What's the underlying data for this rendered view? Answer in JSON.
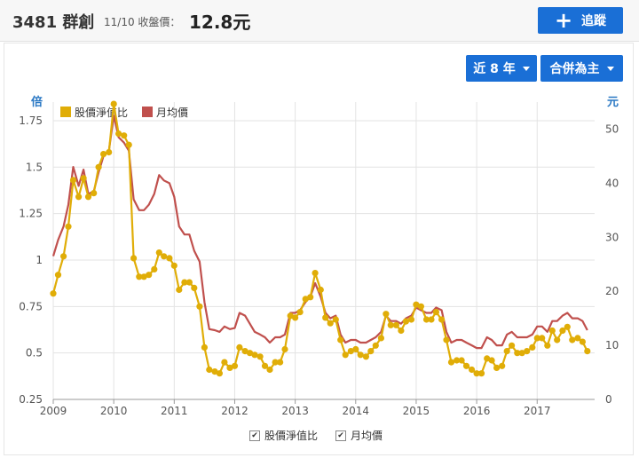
{
  "header": {
    "stock_title": "3481 群創",
    "price_date": "11/10 收盤價：",
    "price_value": "12.8元",
    "follow_label": "追蹤"
  },
  "controls": {
    "range_label": "近 8 年",
    "scope_label": "合併為主"
  },
  "chart_data": {
    "type": "line",
    "left_unit": "倍",
    "right_unit": "元",
    "x_ticks": [
      "2009",
      "2010",
      "2011",
      "2012",
      "2013",
      "2014",
      "2015",
      "2016",
      "2017"
    ],
    "left_ticks": [
      "0.25",
      "0.5",
      "0.75",
      "1",
      "1.25",
      "1.5",
      "1.75"
    ],
    "right_ticks": [
      "0",
      "10",
      "20",
      "30",
      "40",
      "50"
    ],
    "left_range": [
      0.25,
      1.85
    ],
    "right_range": [
      0,
      55
    ],
    "x_range": [
      2009.0,
      2017.95
    ],
    "legend": [
      "股價淨值比",
      "月均價"
    ],
    "colors": {
      "pb": "#e0ad07",
      "price": "#c0504d"
    },
    "series": [
      {
        "name": "股價淨值比",
        "axis": "left",
        "x": [
          2009.0,
          2009.08,
          2009.17,
          2009.25,
          2009.33,
          2009.42,
          2009.5,
          2009.58,
          2009.67,
          2009.75,
          2009.83,
          2009.92,
          2010.0,
          2010.08,
          2010.17,
          2010.25,
          2010.33,
          2010.42,
          2010.5,
          2010.58,
          2010.67,
          2010.75,
          2010.83,
          2010.92,
          2011.0,
          2011.08,
          2011.17,
          2011.25,
          2011.33,
          2011.42,
          2011.5,
          2011.58,
          2011.67,
          2011.75,
          2011.83,
          2011.92,
          2012.0,
          2012.08,
          2012.17,
          2012.25,
          2012.33,
          2012.42,
          2012.5,
          2012.58,
          2012.67,
          2012.75,
          2012.83,
          2012.92,
          2013.0,
          2013.08,
          2013.17,
          2013.25,
          2013.33,
          2013.42,
          2013.5,
          2013.58,
          2013.67,
          2013.75,
          2013.83,
          2013.92,
          2014.0,
          2014.08,
          2014.17,
          2014.25,
          2014.33,
          2014.42,
          2014.5,
          2014.58,
          2014.67,
          2014.75,
          2014.83,
          2014.92,
          2015.0,
          2015.08,
          2015.17,
          2015.25,
          2015.33,
          2015.42,
          2015.5,
          2015.58,
          2015.67,
          2015.75,
          2015.83,
          2015.92,
          2016.0,
          2016.08,
          2016.17,
          2016.25,
          2016.33,
          2016.42,
          2016.5,
          2016.58,
          2016.67,
          2016.75,
          2016.83,
          2016.92,
          2017.0,
          2017.08,
          2017.17,
          2017.25,
          2017.33,
          2017.42,
          2017.5,
          2017.58,
          2017.67,
          2017.75,
          2017.83
        ],
        "values": [
          0.82,
          0.92,
          1.02,
          1.18,
          1.43,
          1.34,
          1.44,
          1.34,
          1.36,
          1.5,
          1.57,
          1.58,
          1.84,
          1.68,
          1.67,
          1.62,
          1.01,
          0.91,
          0.91,
          0.92,
          0.95,
          1.04,
          1.02,
          1.01,
          0.97,
          0.84,
          0.88,
          0.88,
          0.85,
          0.75,
          0.53,
          0.41,
          0.4,
          0.39,
          0.45,
          0.42,
          0.43,
          0.53,
          0.51,
          0.5,
          0.49,
          0.48,
          0.43,
          0.41,
          0.45,
          0.45,
          0.52,
          0.7,
          0.69,
          0.72,
          0.79,
          0.8,
          0.93,
          0.84,
          0.69,
          0.66,
          0.68,
          0.57,
          0.49,
          0.51,
          0.52,
          0.49,
          0.48,
          0.51,
          0.54,
          0.58,
          0.71,
          0.65,
          0.65,
          0.62,
          0.67,
          0.68,
          0.76,
          0.75,
          0.68,
          0.68,
          0.72,
          0.68,
          0.57,
          0.45,
          0.46,
          0.46,
          0.43,
          0.41,
          0.39,
          0.39,
          0.47,
          0.46,
          0.42,
          0.43,
          0.51,
          0.54,
          0.5,
          0.5,
          0.51,
          0.53,
          0.58,
          0.58,
          0.54,
          0.62,
          0.57,
          0.62,
          0.64,
          0.57,
          0.58,
          0.56,
          0.51
        ]
      },
      {
        "name": "月均價",
        "axis": "right",
        "x": [
          2009.0,
          2009.08,
          2009.17,
          2009.25,
          2009.33,
          2009.42,
          2009.5,
          2009.58,
          2009.67,
          2009.75,
          2009.83,
          2009.92,
          2010.0,
          2010.08,
          2010.17,
          2010.25,
          2010.33,
          2010.42,
          2010.5,
          2010.58,
          2010.67,
          2010.75,
          2010.83,
          2010.92,
          2011.0,
          2011.08,
          2011.17,
          2011.25,
          2011.33,
          2011.42,
          2011.5,
          2011.58,
          2011.67,
          2011.75,
          2011.83,
          2011.92,
          2012.0,
          2012.08,
          2012.17,
          2012.25,
          2012.33,
          2012.42,
          2012.5,
          2012.58,
          2012.67,
          2012.75,
          2012.83,
          2012.92,
          2013.0,
          2013.08,
          2013.17,
          2013.25,
          2013.33,
          2013.42,
          2013.5,
          2013.58,
          2013.67,
          2013.75,
          2013.83,
          2013.92,
          2014.0,
          2014.08,
          2014.17,
          2014.25,
          2014.33,
          2014.42,
          2014.5,
          2014.58,
          2014.67,
          2014.75,
          2014.83,
          2014.92,
          2015.0,
          2015.08,
          2015.17,
          2015.25,
          2015.33,
          2015.42,
          2015.5,
          2015.58,
          2015.67,
          2015.75,
          2015.83,
          2015.92,
          2016.0,
          2016.08,
          2016.17,
          2016.25,
          2016.33,
          2016.42,
          2016.5,
          2016.58,
          2016.67,
          2016.75,
          2016.83,
          2016.92,
          2017.0,
          2017.08,
          2017.17,
          2017.25,
          2017.33,
          2017.42,
          2017.5,
          2017.58,
          2017.67,
          2017.75,
          2017.83
        ],
        "values": [
          26.5,
          29.5,
          32.0,
          36.0,
          43.0,
          39.5,
          42.5,
          38.0,
          38.5,
          42.0,
          45.0,
          46.0,
          52.5,
          48.5,
          47.5,
          46.0,
          37.0,
          35.0,
          35.0,
          36.0,
          38.0,
          41.5,
          40.5,
          40.0,
          37.5,
          32.0,
          30.5,
          30.5,
          27.5,
          25.5,
          18.0,
          13.0,
          12.8,
          12.5,
          13.5,
          13.0,
          13.2,
          16.0,
          15.5,
          14.0,
          12.5,
          12.0,
          11.5,
          10.5,
          11.5,
          11.5,
          12.0,
          16.0,
          16.0,
          16.5,
          18.0,
          19.0,
          21.5,
          19.0,
          16.0,
          15.0,
          15.5,
          12.0,
          10.5,
          11.0,
          11.0,
          10.5,
          10.5,
          11.0,
          11.5,
          12.5,
          15.5,
          14.5,
          14.5,
          14.0,
          15.0,
          15.5,
          17.0,
          16.5,
          16.0,
          16.0,
          17.0,
          16.5,
          12.5,
          10.5,
          11.0,
          11.0,
          10.5,
          10.0,
          9.5,
          9.5,
          11.5,
          11.0,
          10.0,
          10.0,
          12.0,
          12.5,
          11.5,
          11.5,
          11.5,
          12.0,
          13.5,
          13.5,
          12.5,
          14.5,
          14.5,
          15.5,
          16.0,
          15.0,
          15.0,
          14.5,
          12.8
        ]
      }
    ]
  }
}
